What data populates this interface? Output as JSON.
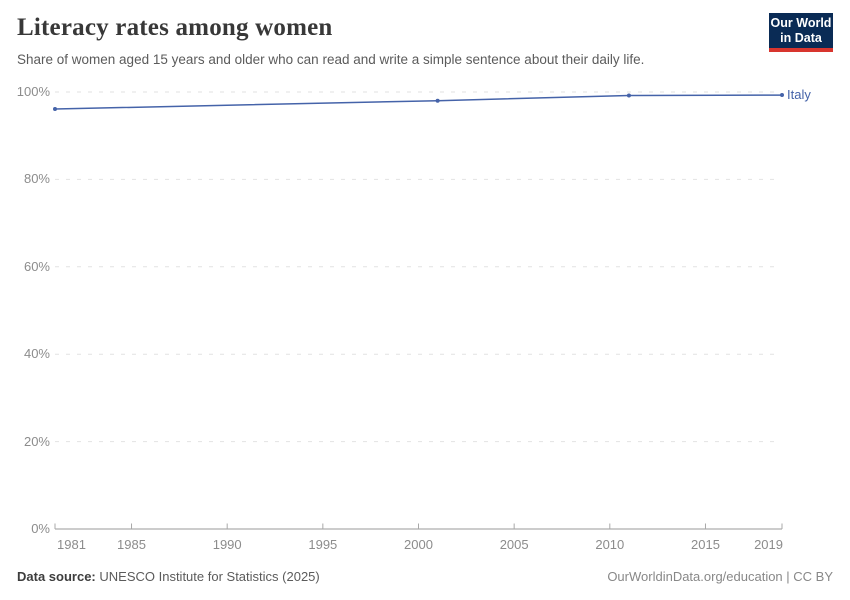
{
  "header": {
    "title": "Literacy rates among women",
    "subtitle": "Share of women aged 15 years and older who can read and write a simple sentence about their daily life.",
    "logo": {
      "line1": "Our World",
      "line2": "in Data"
    }
  },
  "footer": {
    "source_label": "Data source:",
    "source_text": "UNESCO Institute for Statistics (2025)",
    "attribution": "OurWorldinData.org/education | CC BY"
  },
  "chart_data": {
    "type": "line",
    "title": "Literacy rates among women",
    "xlabel": "",
    "ylabel": "",
    "xlim": [
      1981,
      2019
    ],
    "ylim": [
      0,
      100
    ],
    "x_ticks": [
      1981,
      1985,
      1990,
      1995,
      2000,
      2005,
      2010,
      2015,
      2019
    ],
    "y_ticks": [
      0,
      20,
      40,
      60,
      80,
      100
    ],
    "y_tick_suffix": "%",
    "grid": "dashed-horizontal",
    "legend": "end-of-line-label",
    "series": [
      {
        "name": "Italy",
        "color": "#4563a9",
        "points": [
          {
            "x": 1981,
            "y": 96.1
          },
          {
            "x": 2001,
            "y": 98.0
          },
          {
            "x": 2011,
            "y": 99.2
          },
          {
            "x": 2019,
            "y": 99.3
          }
        ]
      }
    ]
  },
  "colors": {
    "grid": "#e2e2e2",
    "axis": "#999999",
    "tick": "#a8a8a8",
    "tick_label": "#8c8c8c",
    "logo_bg": "#0a2b55",
    "logo_red": "#d8352e"
  }
}
